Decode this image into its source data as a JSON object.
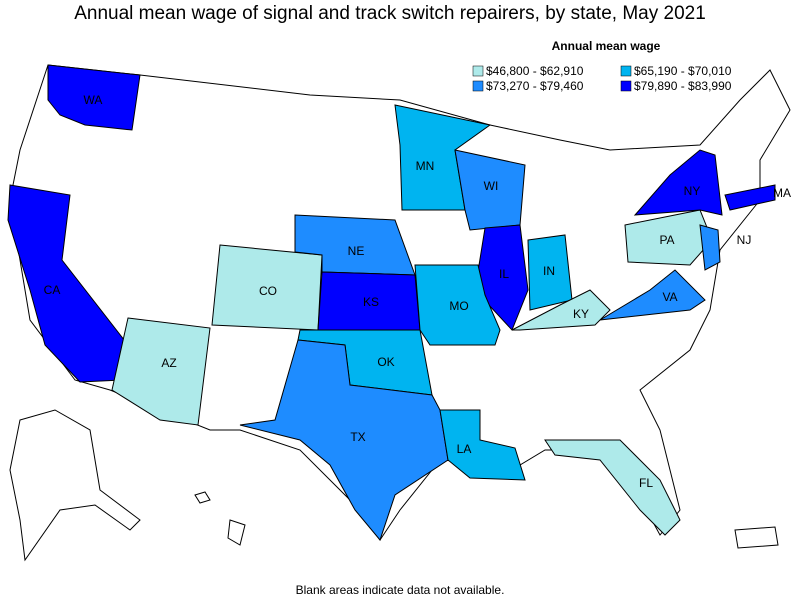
{
  "title": "Annual mean wage of signal and track switch repairers, by state, May 2021",
  "legend": {
    "title": "Annual mean wage",
    "items": [
      {
        "label": "$46,800 - $62,910",
        "color": "#aeeaea"
      },
      {
        "label": "$65,190 - $70,010",
        "color": "#00b4f0"
      },
      {
        "label": "$73,270 - $79,460",
        "color": "#1e8cff"
      },
      {
        "label": "$79,890 - $83,990",
        "color": "#0000ff"
      }
    ]
  },
  "states": [
    {
      "label": "WA",
      "range": 3
    },
    {
      "label": "CA",
      "range": 3
    },
    {
      "label": "AZ",
      "range": 0
    },
    {
      "label": "CO",
      "range": 0
    },
    {
      "label": "NE",
      "range": 2
    },
    {
      "label": "KS",
      "range": 3
    },
    {
      "label": "OK",
      "range": 1
    },
    {
      "label": "TX",
      "range": 2
    },
    {
      "label": "MN",
      "range": 1
    },
    {
      "label": "WI",
      "range": 2
    },
    {
      "label": "IL",
      "range": 3
    },
    {
      "label": "IN",
      "range": 1
    },
    {
      "label": "MO",
      "range": 1
    },
    {
      "label": "LA",
      "range": 1
    },
    {
      "label": "KY",
      "range": 0
    },
    {
      "label": "VA",
      "range": 2
    },
    {
      "label": "PA",
      "range": 0
    },
    {
      "label": "NJ",
      "range": 2
    },
    {
      "label": "NY",
      "range": 3
    },
    {
      "label": "MA",
      "range": 3
    },
    {
      "label": "FL",
      "range": 0
    }
  ],
  "note": "Blank areas indicate data not available."
}
